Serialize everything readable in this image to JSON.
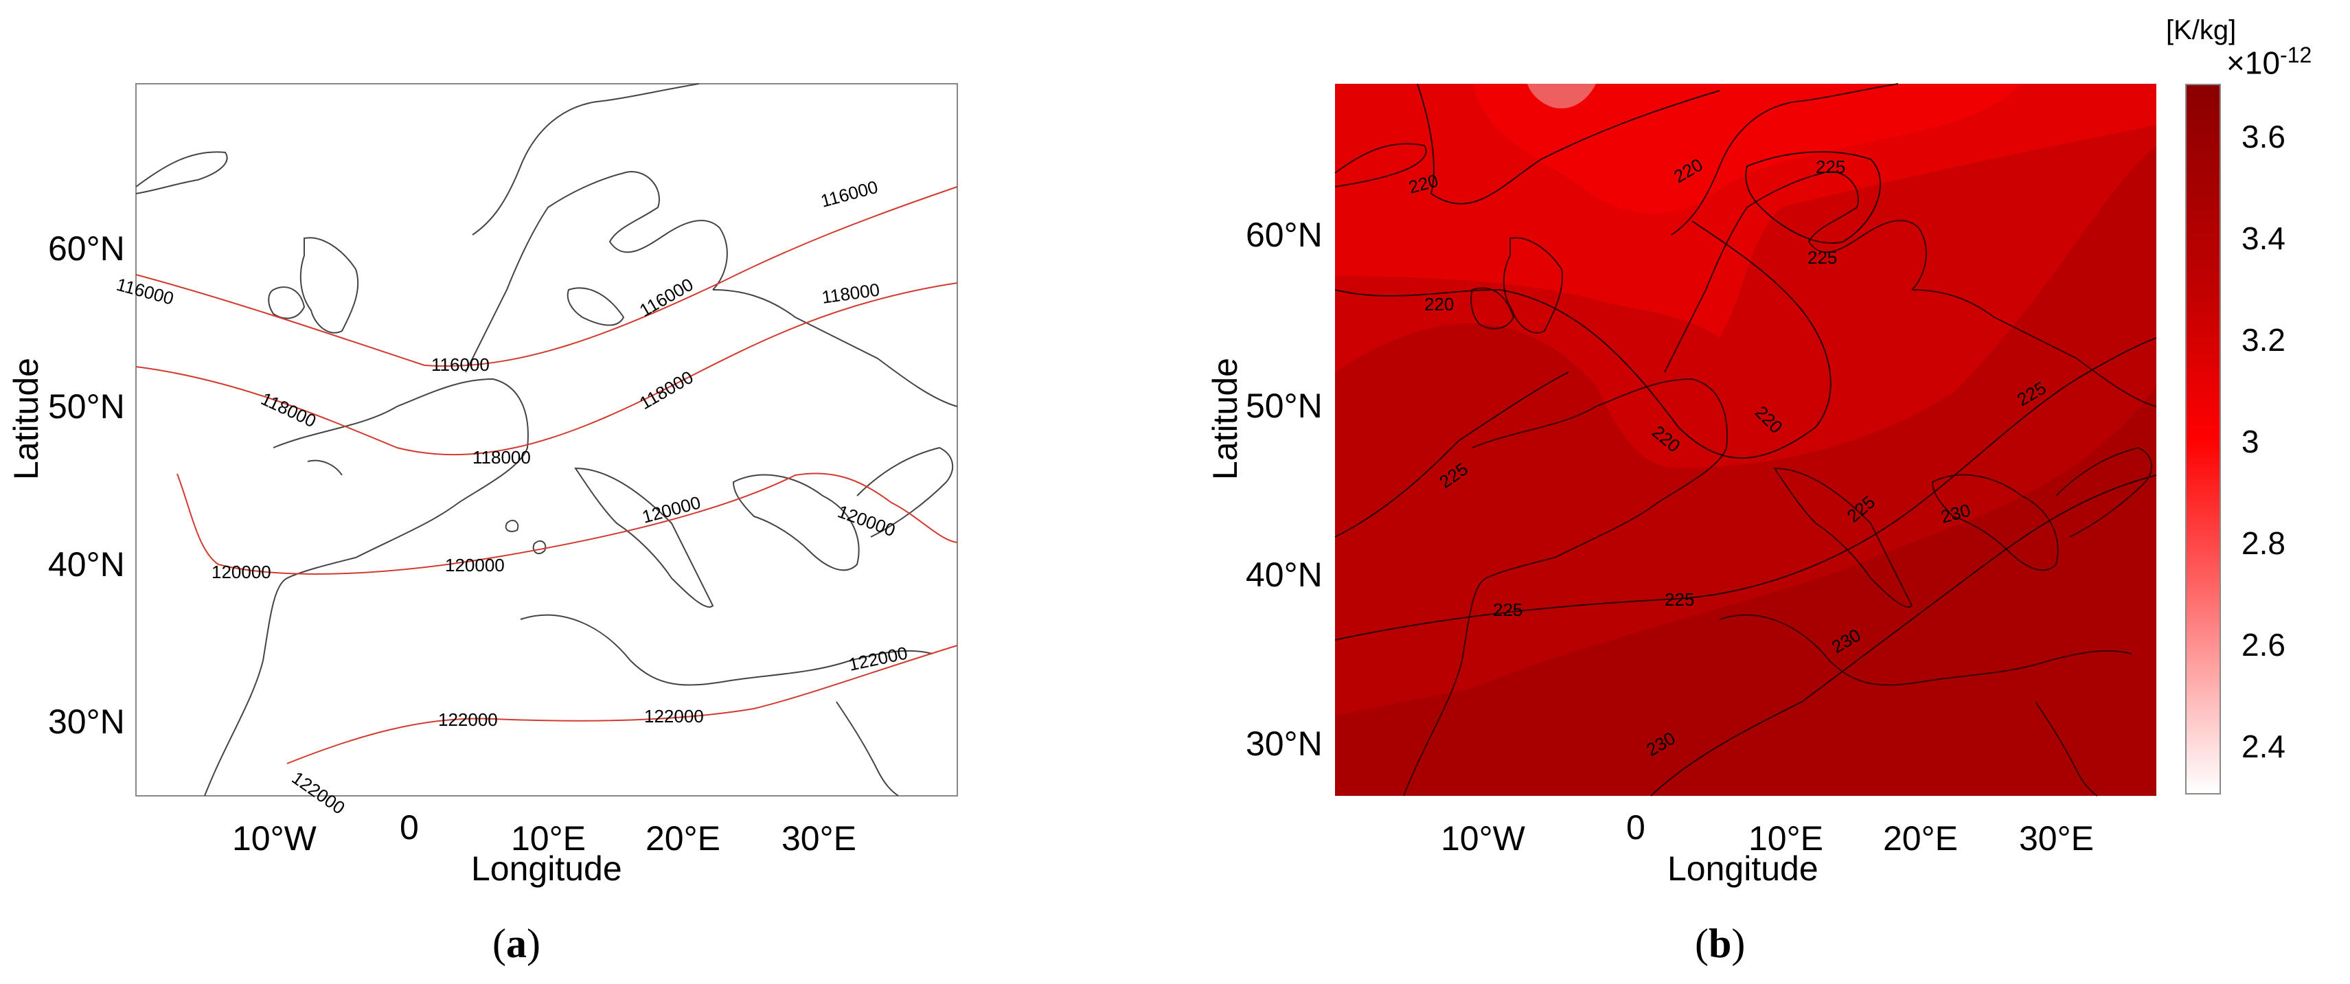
{
  "panel_a": {
    "caption_letter": "a",
    "xlabel": "Longitude",
    "ylabel": "Latitude",
    "x_ticks": [
      "10°W",
      "0",
      "10°E",
      "20°E",
      "30°E"
    ],
    "y_ticks": [
      "30°N",
      "40°N",
      "50°N",
      "60°N"
    ],
    "contour_color": "#d23b2e",
    "contour_labels": [
      "116000",
      "116000",
      "116000",
      "116000",
      "118000",
      "118000",
      "118000",
      "118000",
      "120000",
      "120000",
      "120000",
      "120000",
      "122000",
      "122000",
      "122000",
      "122000"
    ]
  },
  "panel_b": {
    "caption_letter": "b",
    "xlabel": "Longitude",
    "ylabel": "Latitude",
    "x_ticks": [
      "10°W",
      "0",
      "10°E",
      "20°E",
      "30°E"
    ],
    "y_ticks": [
      "30°N",
      "40°N",
      "50°N",
      "60°N"
    ],
    "contour_labels": [
      "220",
      "220",
      "220",
      "220",
      "220",
      "225",
      "225",
      "225",
      "225",
      "225",
      "225",
      "225",
      "230",
      "230",
      "230"
    ],
    "colorbar": {
      "unit": "[K/kg]",
      "exponent_base": "×10",
      "exponent": "-12",
      "ticks": [
        "3.6",
        "3.4",
        "3.2",
        "3",
        "2.8",
        "2.6",
        "2.4"
      ],
      "color_low": "#ffffff",
      "color_high": "#8b0000"
    }
  }
}
